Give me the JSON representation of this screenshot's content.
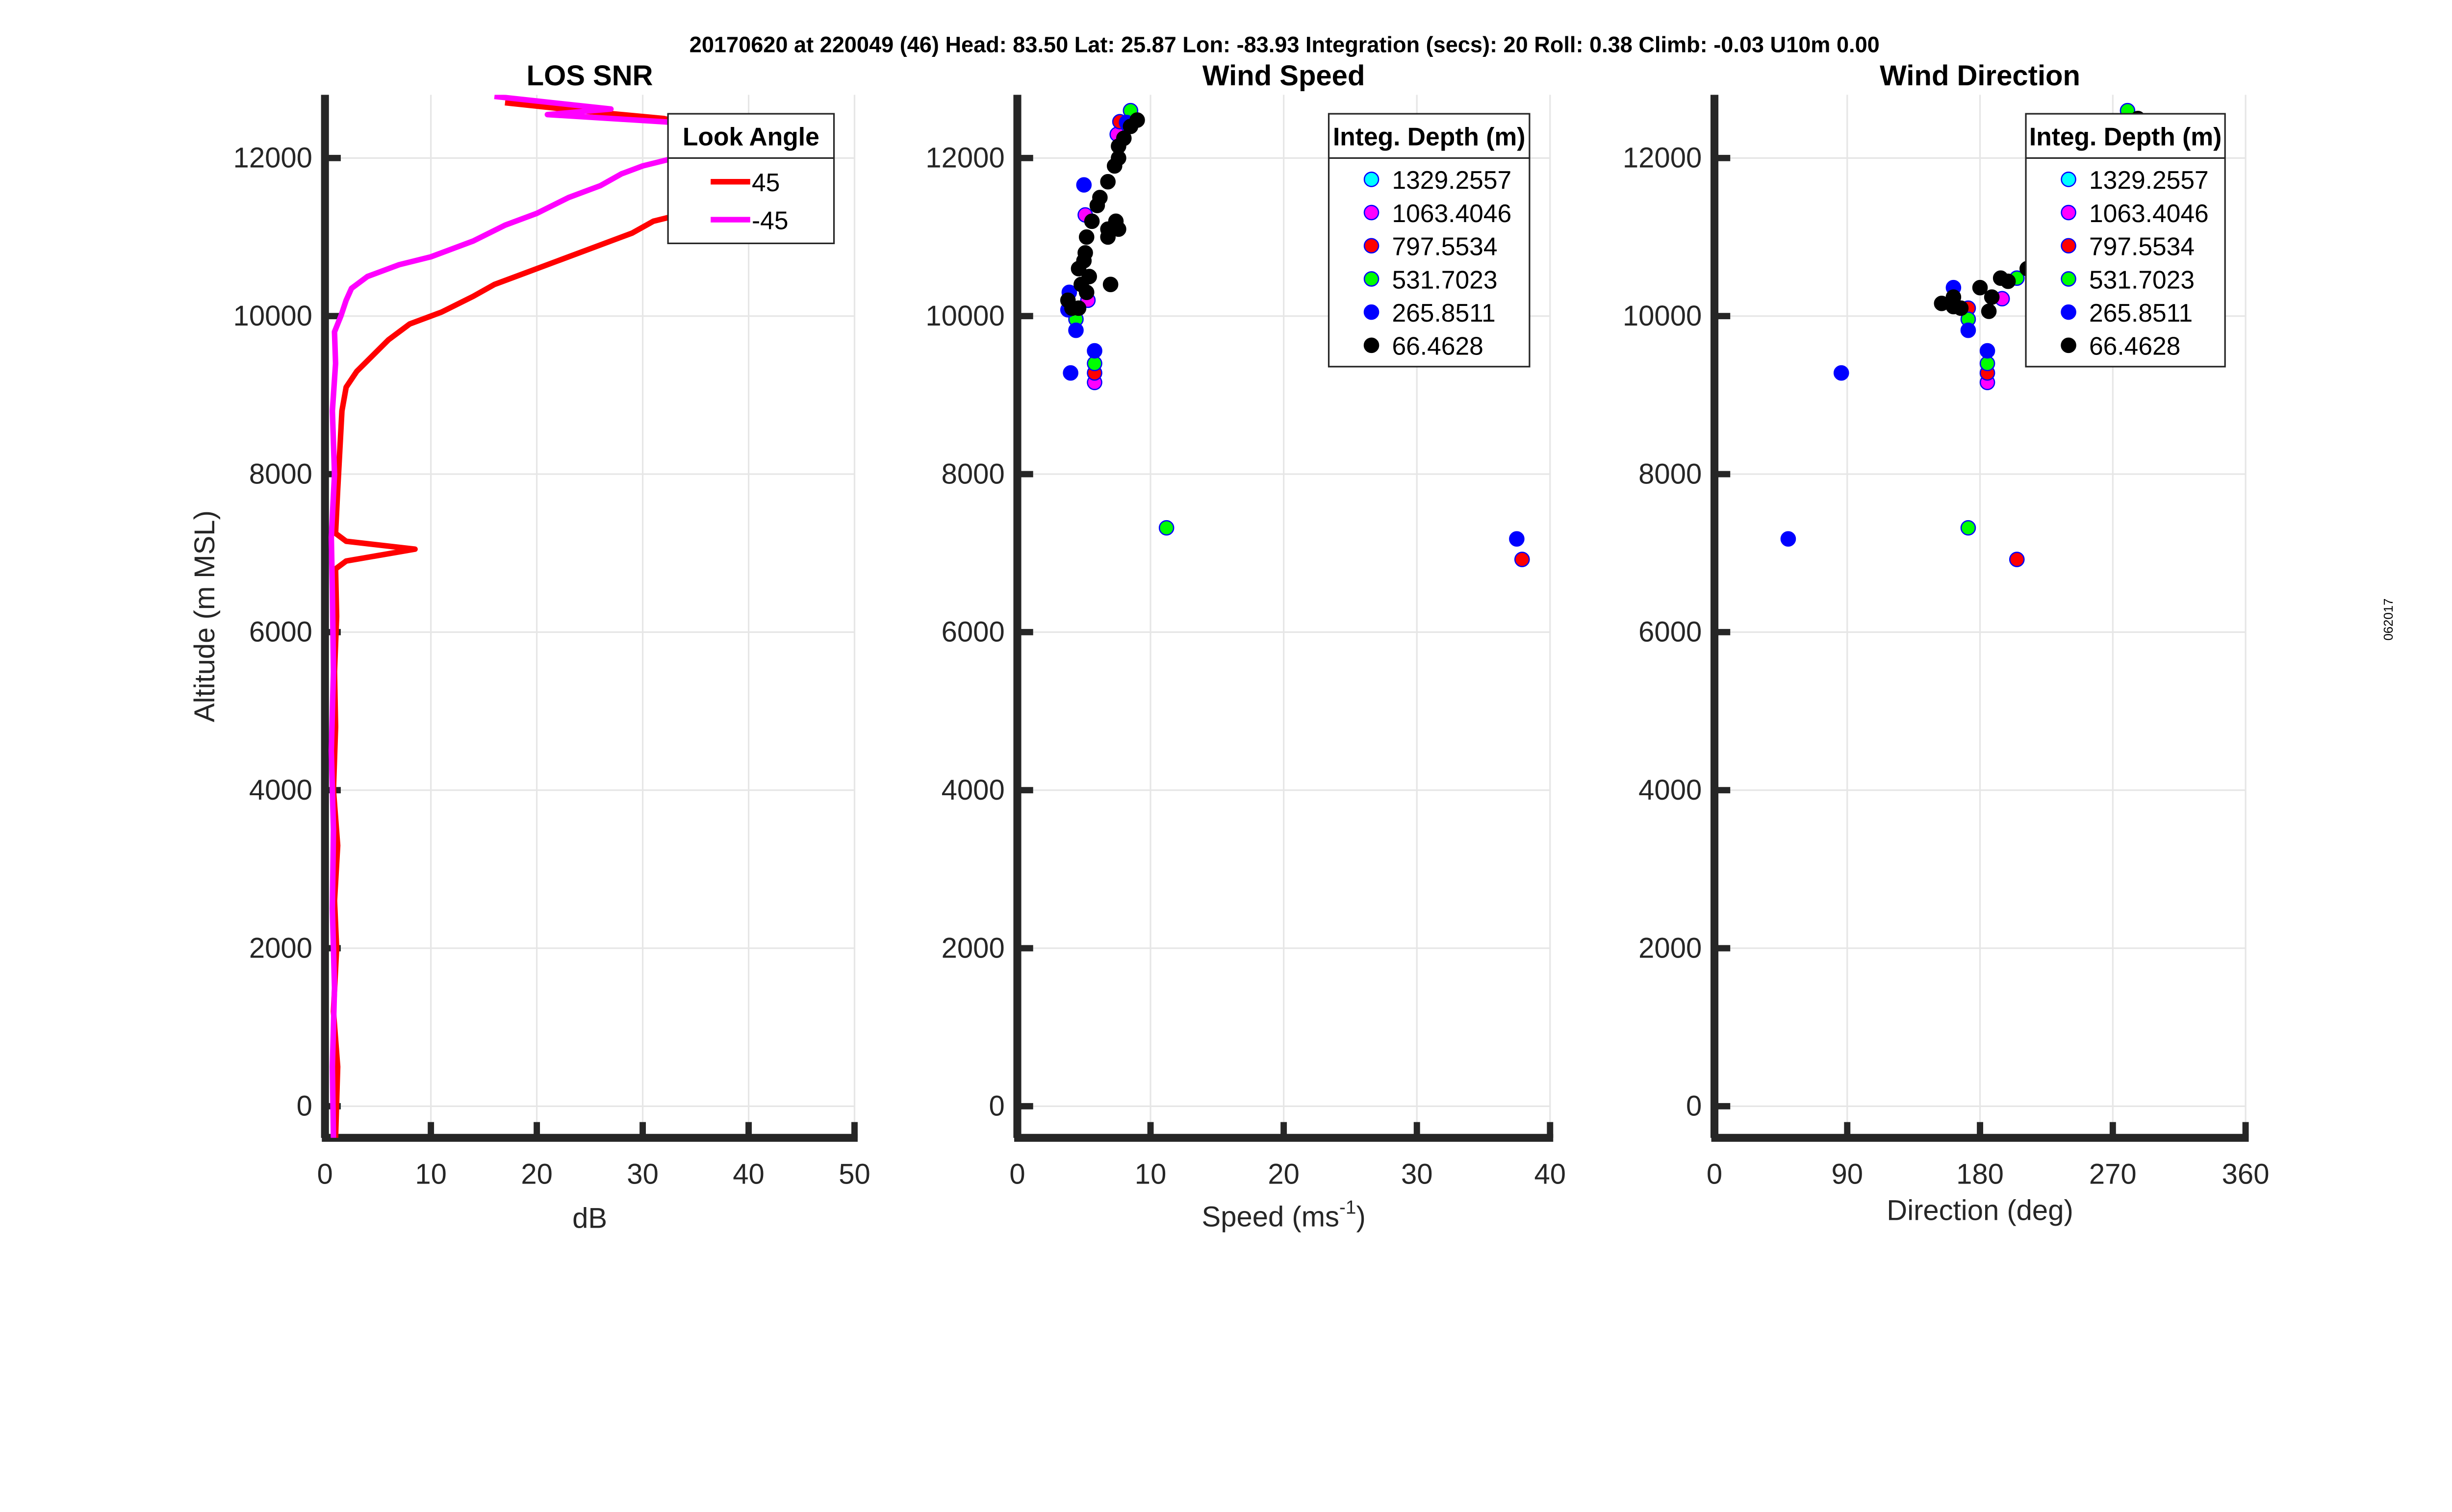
{
  "suptitle": "20170620 at 220049 (46)  Head: 83.50  Lat: 25.87  Lon: -83.93  Integration (secs): 20  Roll: 0.38  Climb: -0.03  U10m 0.00",
  "side_label": "062017",
  "chart_data": [
    {
      "type": "line",
      "title": "LOS SNR",
      "xlabel": "dB",
      "ylabel": "Altitude (m MSL)",
      "xlim": [
        0,
        50
      ],
      "ylim": [
        -400,
        12800
      ],
      "xticks": [
        0,
        10,
        20,
        30,
        40,
        50
      ],
      "yticks": [
        0,
        2000,
        4000,
        6000,
        8000,
        10000,
        12000
      ],
      "grid": true,
      "legend": {
        "title": "Look Angle",
        "placement": "top-right"
      },
      "series": [
        {
          "name": "45",
          "color": "#ff0000",
          "points": [
            [
              1,
              -400
            ],
            [
              1.2,
              500
            ],
            [
              0.8,
              1200
            ],
            [
              1.1,
              2000
            ],
            [
              0.9,
              2600
            ],
            [
              1.2,
              3300
            ],
            [
              0.8,
              4000
            ],
            [
              1,
              4800
            ],
            [
              0.9,
              5500
            ],
            [
              1.1,
              6200
            ],
            [
              1,
              6800
            ],
            [
              2,
              6900
            ],
            [
              8.5,
              7050
            ],
            [
              2,
              7150
            ],
            [
              1,
              7250
            ],
            [
              1.2,
              7800
            ],
            [
              1.4,
              8300
            ],
            [
              1.6,
              8800
            ],
            [
              2,
              9100
            ],
            [
              3,
              9300
            ],
            [
              4.5,
              9500
            ],
            [
              6,
              9700
            ],
            [
              8,
              9900
            ],
            [
              11,
              10050
            ],
            [
              14,
              10250
            ],
            [
              16,
              10400
            ],
            [
              19,
              10550
            ],
            [
              22,
              10700
            ],
            [
              26,
              10900
            ],
            [
              29,
              11050
            ],
            [
              31,
              11200
            ],
            [
              34,
              11300
            ],
            [
              40,
              11500
            ],
            [
              35,
              12400
            ],
            [
              32,
              12500
            ],
            [
              24,
              12600
            ],
            [
              17,
              12700
            ]
          ]
        },
        {
          "name": "-45",
          "color": "#ff00ff",
          "points": [
            [
              0.8,
              -400
            ],
            [
              0.7,
              500
            ],
            [
              0.9,
              1500
            ],
            [
              0.7,
              2500
            ],
            [
              0.8,
              3500
            ],
            [
              0.6,
              4500
            ],
            [
              0.8,
              5500
            ],
            [
              0.7,
              6500
            ],
            [
              0.6,
              7200
            ],
            [
              0.9,
              8000
            ],
            [
              0.7,
              8800
            ],
            [
              1,
              9400
            ],
            [
              0.9,
              9800
            ],
            [
              1.5,
              10000
            ],
            [
              2,
              10200
            ],
            [
              2.5,
              10350
            ],
            [
              4,
              10500
            ],
            [
              7,
              10650
            ],
            [
              10,
              10750
            ],
            [
              14,
              10950
            ],
            [
              17,
              11150
            ],
            [
              20,
              11300
            ],
            [
              23,
              11500
            ],
            [
              26,
              11650
            ],
            [
              28,
              11800
            ],
            [
              30,
              11900
            ],
            [
              33,
              12000
            ],
            [
              38,
              12200
            ],
            [
              33,
              12450
            ],
            [
              21,
              12550
            ],
            [
              27,
              12620
            ],
            [
              16,
              12780
            ]
          ]
        }
      ]
    },
    {
      "type": "scatter",
      "title": "Wind Speed",
      "xlabel": "Speed (ms",
      "xlabel_sup": "-1",
      "xlabel_end": ")",
      "xlim": [
        0,
        40
      ],
      "ylim": [
        -400,
        12800
      ],
      "xticks": [
        0,
        10,
        20,
        30,
        40
      ],
      "yticks": [
        0,
        2000,
        4000,
        6000,
        8000,
        10000,
        12000
      ],
      "grid": true,
      "legend": {
        "title": "Integ. Depth (m)",
        "placement": "top-right"
      },
      "series": [
        {
          "name": "1329.2557",
          "color": "#00ffff",
          "points": []
        },
        {
          "name": "1063.4046",
          "color": "#ff00ff",
          "points": [
            [
              7.5,
              12300
            ],
            [
              5.1,
              11280
            ],
            [
              5.3,
              10200
            ],
            [
              5.8,
              9160
            ]
          ]
        },
        {
          "name": "797.5534",
          "color": "#ff0000",
          "points": [
            [
              7.7,
              12460
            ],
            [
              5.8,
              9280
            ],
            [
              37.9,
              6920
            ]
          ]
        },
        {
          "name": "531.7023",
          "color": "#00ff00",
          "points": [
            [
              8.5,
              12600
            ],
            [
              4.4,
              9960
            ],
            [
              5.8,
              9400
            ],
            [
              11.2,
              7320
            ]
          ]
        },
        {
          "name": "265.8511",
          "color": "#0000ff",
          "points": [
            [
              5.0,
              11660
            ],
            [
              3.9,
              10300
            ],
            [
              3.8,
              10080
            ],
            [
              4.4,
              9820
            ],
            [
              5.8,
              9560
            ],
            [
              4.0,
              9280
            ],
            [
              37.5,
              7180
            ],
            [
              8.2,
              12450
            ]
          ]
        },
        {
          "name": "66.4628",
          "color": "#000000",
          "points": [
            [
              9.0,
              12480
            ],
            [
              8.5,
              12400
            ],
            [
              8.0,
              12250
            ],
            [
              7.6,
              12150
            ],
            [
              7.6,
              12000
            ],
            [
              7.3,
              11900
            ],
            [
              6.8,
              11700
            ],
            [
              6.2,
              11500
            ],
            [
              6.0,
              11400
            ],
            [
              5.6,
              11200
            ],
            [
              5.2,
              11000
            ],
            [
              5.1,
              10800
            ],
            [
              6.8,
              11100
            ],
            [
              7.4,
              11200
            ],
            [
              6.8,
              11000
            ],
            [
              7.6,
              11100
            ],
            [
              5.4,
              10500
            ],
            [
              4.8,
              10400
            ],
            [
              4.6,
              10600
            ],
            [
              5.2,
              10300
            ],
            [
              4.6,
              10100
            ],
            [
              4.1,
              10100
            ],
            [
              3.8,
              10200
            ],
            [
              7.0,
              10400
            ],
            [
              5.0,
              10700
            ]
          ]
        }
      ]
    },
    {
      "type": "scatter",
      "title": "Wind Direction",
      "xlabel": "Direction (deg)",
      "xlim": [
        0,
        360
      ],
      "ylim": [
        -400,
        12800
      ],
      "xticks": [
        0,
        90,
        180,
        270,
        360
      ],
      "yticks": [
        0,
        2000,
        4000,
        6000,
        8000,
        10000,
        12000
      ],
      "grid": true,
      "legend": {
        "title": "Integ. Depth (m)",
        "placement": "top-right"
      },
      "series": [
        {
          "name": "1329.2557",
          "color": "#00ffff",
          "points": []
        },
        {
          "name": "1063.4046",
          "color": "#ff00ff",
          "points": [
            [
              195,
              10220
            ],
            [
              185,
              9160
            ]
          ]
        },
        {
          "name": "797.5534",
          "color": "#ff0000",
          "points": [
            [
              172,
              10100
            ],
            [
              185,
              9280
            ],
            [
              205,
              6920
            ]
          ]
        },
        {
          "name": "531.7023",
          "color": "#00ff00",
          "points": [
            [
              280,
              12600
            ],
            [
              172,
              9960
            ],
            [
              205,
              10480
            ],
            [
              185,
              9400
            ],
            [
              172,
              7320
            ]
          ]
        },
        {
          "name": "265.8511",
          "color": "#0000ff",
          "points": [
            [
              162,
              10360
            ],
            [
              172,
              9820
            ],
            [
              185,
              9560
            ],
            [
              86,
              9280
            ],
            [
              50,
              7180
            ]
          ]
        },
        {
          "name": "66.4628",
          "color": "#000000",
          "points": [
            [
              287,
              12500
            ],
            [
              154,
              10160
            ],
            [
              162,
              10240
            ],
            [
              167,
              10100
            ],
            [
              180,
              10360
            ],
            [
              186,
              10060
            ],
            [
              194,
              10480
            ],
            [
              199,
              10440
            ],
            [
              212,
              10600
            ],
            [
              188,
              10240
            ],
            [
              162,
              10120
            ]
          ]
        }
      ]
    }
  ]
}
